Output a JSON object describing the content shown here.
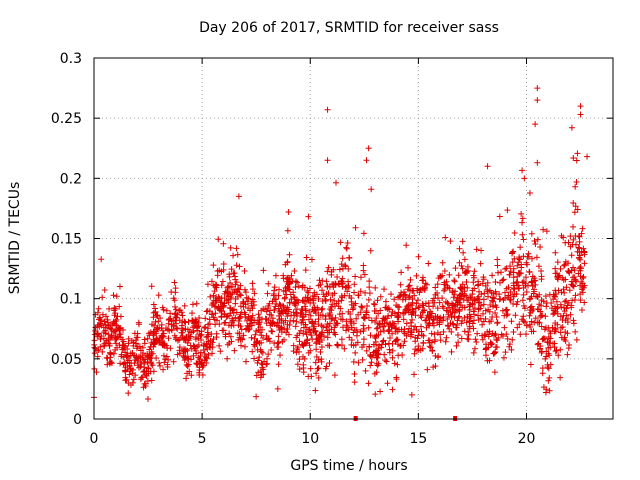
{
  "chart_data": {
    "type": "scatter",
    "title": "Day 206 of 2017, SRMTID for receiver sass",
    "xlabel": "GPS time / hours",
    "ylabel": "SRMTID / TECUs",
    "xlim": [
      0,
      24
    ],
    "ylim": [
      0,
      0.3
    ],
    "x_ticks": [
      0,
      5,
      10,
      15,
      20
    ],
    "x_tick_labels": [
      "0",
      "5",
      "10",
      "15",
      "20"
    ],
    "y_ticks": [
      0,
      0.05,
      0.1,
      0.15,
      0.2,
      0.25,
      0.3
    ],
    "y_tick_labels": [
      "0",
      "0.05",
      "0.1",
      "0.15",
      "0.2",
      "0.25",
      "0.3"
    ],
    "grid": true,
    "marker": "+",
    "point_color": "#e00000",
    "x_range_of_points": [
      0.0,
      22.7
    ],
    "envelope_hours": [
      0,
      1,
      2,
      3,
      4,
      5,
      6,
      7,
      8,
      9,
      10,
      11,
      12,
      13,
      14,
      15,
      16,
      17,
      18,
      19,
      20,
      21,
      22,
      23
    ],
    "envelope_typical": [
      0.065,
      0.06,
      0.058,
      0.06,
      0.068,
      0.07,
      0.085,
      0.09,
      0.075,
      0.08,
      0.09,
      0.085,
      0.08,
      0.085,
      0.065,
      0.085,
      0.1,
      0.085,
      0.095,
      0.1,
      0.105,
      0.08,
      0.11,
      0.11
    ],
    "envelope_spread": [
      0.025,
      0.022,
      0.022,
      0.022,
      0.025,
      0.025,
      0.035,
      0.035,
      0.03,
      0.03,
      0.04,
      0.04,
      0.045,
      0.04,
      0.035,
      0.035,
      0.035,
      0.03,
      0.04,
      0.045,
      0.05,
      0.04,
      0.045,
      0.045
    ],
    "annotated_points": [
      {
        "x": 10.8,
        "y": 0.257
      },
      {
        "x": 10.8,
        "y": 0.215
      },
      {
        "x": 12.7,
        "y": 0.225
      },
      {
        "x": 12.6,
        "y": 0.215
      },
      {
        "x": 20.5,
        "y": 0.275
      },
      {
        "x": 20.5,
        "y": 0.265
      },
      {
        "x": 20.4,
        "y": 0.245
      },
      {
        "x": 22.5,
        "y": 0.26
      },
      {
        "x": 22.5,
        "y": 0.253
      },
      {
        "x": 22.1,
        "y": 0.242
      },
      {
        "x": 22.8,
        "y": 0.218
      },
      {
        "x": 20.5,
        "y": 0.213
      },
      {
        "x": 6.7,
        "y": 0.185
      },
      {
        "x": 18.2,
        "y": 0.21
      },
      {
        "x": 19.9,
        "y": 0.2
      },
      {
        "x": 0.0,
        "y": 0.018
      },
      {
        "x": 14.7,
        "y": 0.02
      },
      {
        "x": 20.9,
        "y": 0.022
      },
      {
        "x": 8.5,
        "y": 0.025
      }
    ],
    "zero_markers": [
      12.1,
      16.7
    ]
  }
}
